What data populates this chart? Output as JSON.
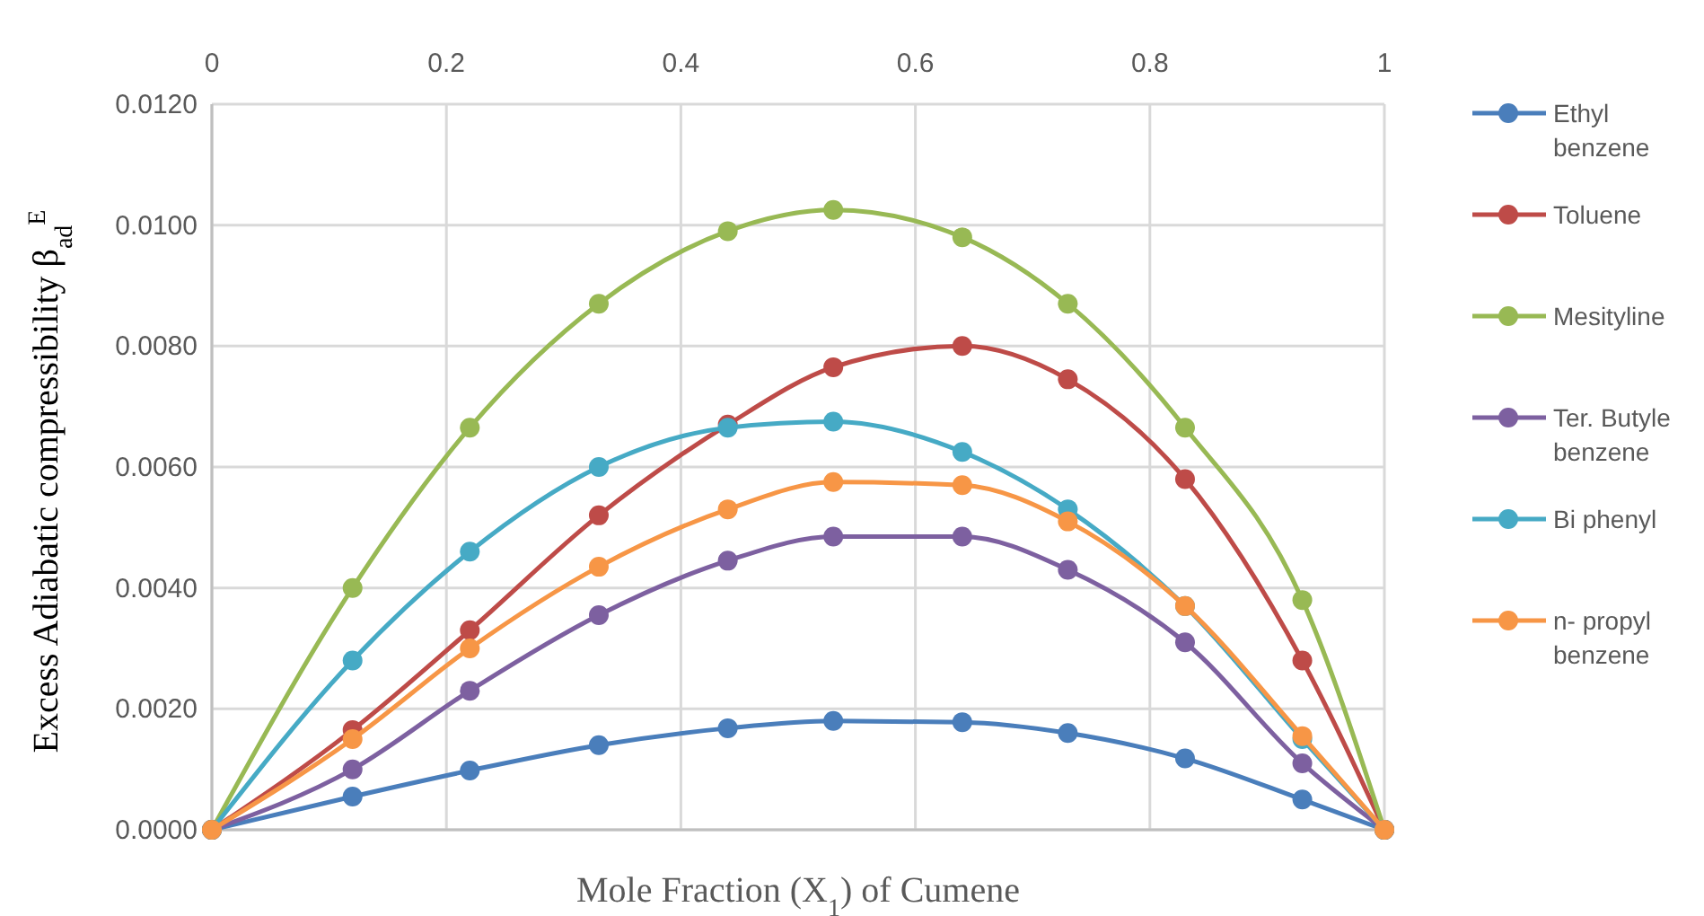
{
  "chart_data": {
    "type": "line",
    "xlabel": "Mole Fraction (X$_{1}$) of Cumene",
    "ylabel": "Excess Adiabatic compressibility β$_{ad}$$^{E}$",
    "x": [
      0,
      0.12,
      0.22,
      0.33,
      0.44,
      0.53,
      0.64,
      0.73,
      0.83,
      0.93,
      1
    ],
    "xlim": [
      0,
      1
    ],
    "xticks": [
      0,
      0.2,
      0.4,
      0.6,
      0.8,
      1
    ],
    "ylim": [
      0,
      0.012
    ],
    "yticks": [
      {
        "value": 0,
        "label": "0.0000"
      },
      {
        "value": 0.002,
        "label": "0.0020"
      },
      {
        "value": 0.004,
        "label": "0.0040"
      },
      {
        "value": 0.006,
        "label": "0.0060"
      },
      {
        "value": 0.008,
        "label": "0.0080"
      },
      {
        "value": 0.01,
        "label": "0.0100"
      },
      {
        "value": 0.012,
        "label": "0.0120"
      }
    ],
    "grid": true,
    "legend": "right",
    "marker": "circle",
    "line_style": "solid",
    "series": [
      {
        "name": "Ethyl benzene",
        "color": "#4a7ebb",
        "values": [
          0,
          0.00055,
          0.00098,
          0.0014,
          0.00168,
          0.0018,
          0.00178,
          0.0016,
          0.00118,
          0.0005,
          0
        ]
      },
      {
        "name": "Toluene",
        "color": "#be4b48",
        "values": [
          0,
          0.00165,
          0.0033,
          0.0052,
          0.0067,
          0.00765,
          0.008,
          0.00745,
          0.0058,
          0.0028,
          0
        ]
      },
      {
        "name": "Mesityline",
        "color": "#98b954",
        "values": [
          0,
          0.004,
          0.00665,
          0.0087,
          0.0099,
          0.01025,
          0.0098,
          0.0087,
          0.00665,
          0.0038,
          0
        ]
      },
      {
        "name": "Ter. Butyle benzene",
        "color": "#7d60a0",
        "values": [
          0,
          0.001,
          0.0023,
          0.00355,
          0.00445,
          0.00485,
          0.00485,
          0.0043,
          0.0031,
          0.0011,
          0
        ]
      },
      {
        "name": "Bi phenyl",
        "color": "#46aac5",
        "values": [
          0,
          0.0028,
          0.0046,
          0.006,
          0.00665,
          0.00675,
          0.00625,
          0.0053,
          0.0037,
          0.0015,
          0
        ]
      },
      {
        "name": "n- propyl benzene",
        "color": "#f79646",
        "values": [
          0,
          0.0015,
          0.003,
          0.00435,
          0.0053,
          0.00575,
          0.0057,
          0.0051,
          0.0037,
          0.00155,
          0
        ]
      }
    ]
  }
}
